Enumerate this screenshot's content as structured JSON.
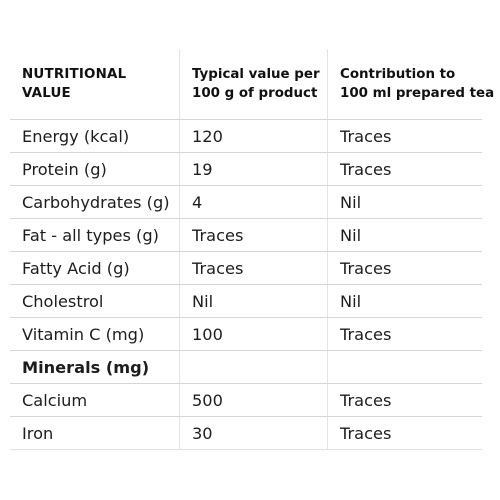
{
  "table": {
    "headers": [
      [
        "NUTRITIONAL",
        "VALUE"
      ],
      [
        "Typical value per",
        "100 g of product"
      ],
      [
        "Contribution to",
        "100 ml prepared tea"
      ]
    ],
    "rows": [
      {
        "name": "Energy (kcal)",
        "per_100g": "120",
        "per_100ml": "Traces"
      },
      {
        "name": "Protein (g)",
        "per_100g": "19",
        "per_100ml": "Traces"
      },
      {
        "name": "Carbohydrates (g)",
        "per_100g": "4",
        "per_100ml": "Nil"
      },
      {
        "name": "Fat - all types (g)",
        "per_100g": "Traces",
        "per_100ml": "Nil"
      },
      {
        "name": "Fatty Acid (g)",
        "per_100g": "Traces",
        "per_100ml": "Traces"
      },
      {
        "name": "Cholestrol",
        "per_100g": "Nil",
        "per_100ml": "Nil"
      },
      {
        "name": "Vitamin C (mg)",
        "per_100g": "100",
        "per_100ml": "Traces"
      },
      {
        "name": "Minerals (mg)",
        "per_100g": "",
        "per_100ml": ""
      },
      {
        "name": "Calcium",
        "per_100g": "500",
        "per_100ml": "Traces"
      },
      {
        "name": "Iron",
        "per_100g": "30",
        "per_100ml": "Traces"
      }
    ]
  }
}
